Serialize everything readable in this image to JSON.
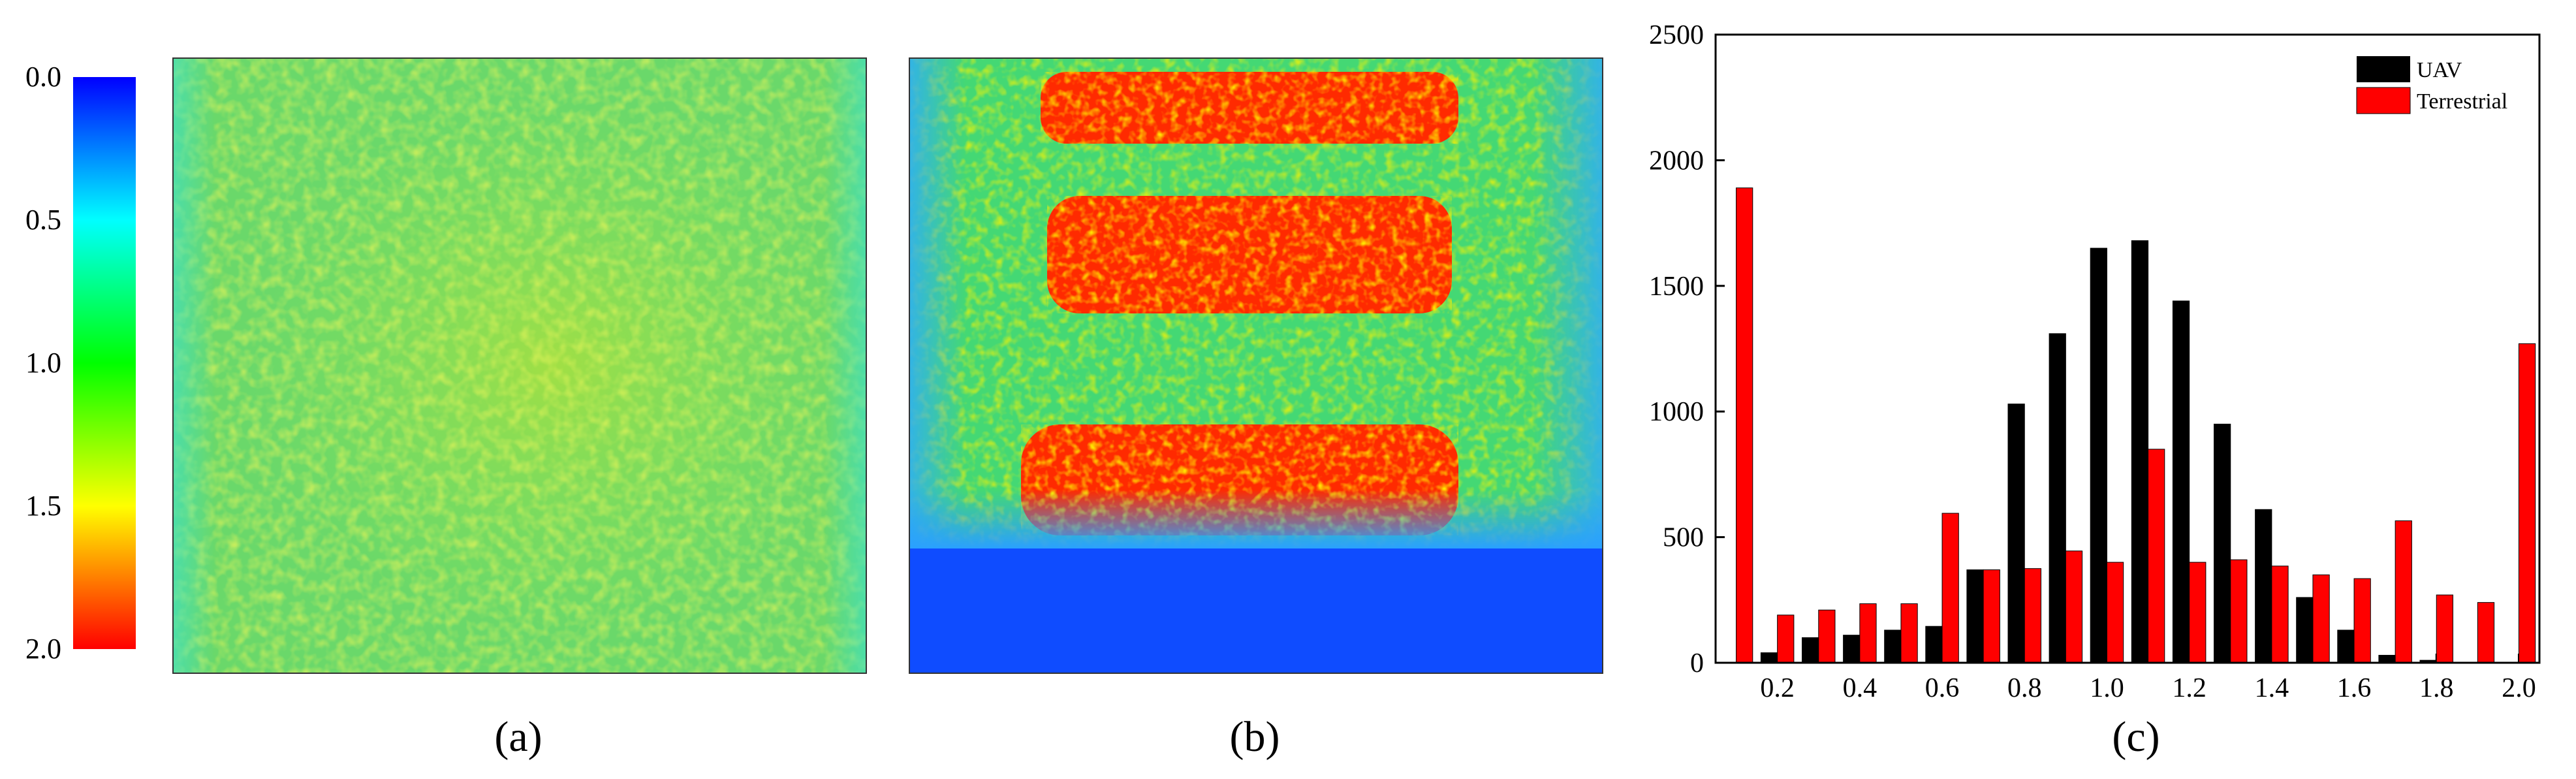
{
  "colorbar": {
    "ticks": [
      "0.0",
      "0.5",
      "1.0",
      "1.5",
      "2.0"
    ],
    "gradient_stops": [
      "#0000ff",
      "#00ffff",
      "#00ff00",
      "#ffff00",
      "#ff0000"
    ]
  },
  "captions": {
    "a": "(a)",
    "b": "(b)",
    "c": "(c)"
  },
  "colors": {
    "uav": "#000000",
    "terrestrial": "#ff0000"
  },
  "chart_data": {
    "type": "bar",
    "categories": [
      0.1,
      0.2,
      0.3,
      0.4,
      0.5,
      0.6,
      0.7,
      0.8,
      0.9,
      1.0,
      1.1,
      1.2,
      1.3,
      1.4,
      1.5,
      1.6,
      1.7,
      1.8,
      1.9,
      2.0
    ],
    "x_ticks": [
      "0.2",
      "0.4",
      "0.6",
      "0.8",
      "1.0",
      "1.2",
      "1.4",
      "1.6",
      "1.8",
      "2.0"
    ],
    "y_ticks": [
      "0",
      "500",
      "1000",
      "1500",
      "2000",
      "2500"
    ],
    "ylim": [
      0,
      2500
    ],
    "xlim": [
      0.05,
      2.05
    ],
    "series": [
      {
        "name": "UAV",
        "color": "#000000",
        "values": [
          0,
          40,
          100,
          110,
          130,
          145,
          370,
          1030,
          1310,
          1650,
          1680,
          1440,
          950,
          610,
          260,
          130,
          30,
          10,
          0,
          0
        ]
      },
      {
        "name": "Terrestrial",
        "color": "#ff0000",
        "values": [
          1890,
          190,
          210,
          235,
          235,
          595,
          370,
          375,
          445,
          400,
          850,
          400,
          410,
          385,
          350,
          335,
          565,
          270,
          240,
          1270
        ]
      }
    ],
    "legend_position": "top-right",
    "grid": false
  }
}
